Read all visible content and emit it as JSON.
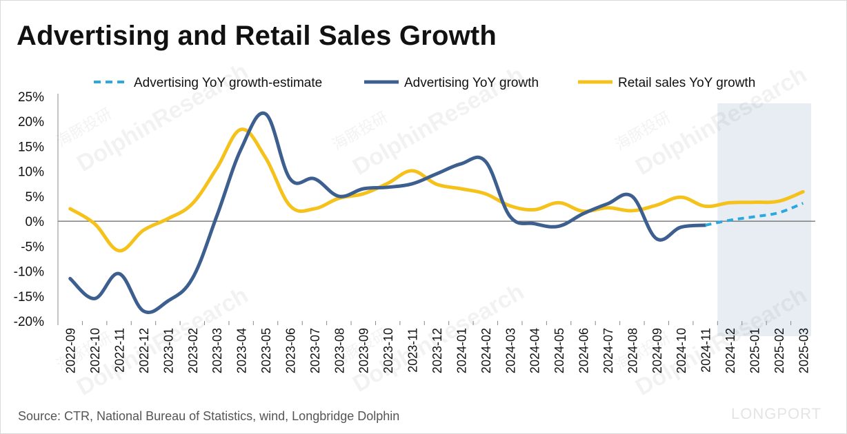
{
  "header": {
    "title": "Advertising and Retail Sales Growth"
  },
  "footer": {
    "source": "Source: CTR, National Bureau of Statistics, wind, Longbridge Dolphin",
    "brand": "LONGPORT"
  },
  "watermark": {
    "text": "DolphinResearch",
    "cn": "海豚投研"
  },
  "chart_data": {
    "type": "line",
    "title": "Advertising and Retail Sales Growth",
    "xlabel": "",
    "ylabel": "",
    "ylim": [
      -20,
      25
    ],
    "yticks": [
      "25%",
      "20%",
      "15%",
      "10%",
      "5%",
      "0%",
      "-5%",
      "-10%",
      "-15%",
      "-20%"
    ],
    "ytick_values": [
      25,
      20,
      15,
      10,
      5,
      0,
      -5,
      -10,
      -15,
      -20
    ],
    "categories": [
      "2022-09",
      "2022-10",
      "2022-11",
      "2022-12",
      "2023-01",
      "2023-02",
      "2023-03",
      "2023-04",
      "2023-05",
      "2023-06",
      "2023-07",
      "2023-08",
      "2023-09",
      "2023-10",
      "2023-11",
      "2023-12",
      "2024-01",
      "2024-02",
      "2024-03",
      "2024-04",
      "2024-05",
      "2024-06",
      "2024-07",
      "2024-08",
      "2024-09",
      "2024-10",
      "2024-11",
      "2024-12",
      "2025-01",
      "2025-02",
      "2025-03"
    ],
    "forecast_start_index": 27,
    "legend_position": "top",
    "series": [
      {
        "name": "Advertising YoY growth-estimate",
        "color": "#2aa9df",
        "style": "dashed",
        "values": [
          null,
          null,
          null,
          null,
          null,
          null,
          null,
          null,
          null,
          null,
          null,
          null,
          null,
          null,
          null,
          null,
          null,
          null,
          null,
          null,
          null,
          null,
          null,
          null,
          null,
          null,
          -0.8,
          0.2,
          0.9,
          1.7,
          3.6
        ]
      },
      {
        "name": "Advertising YoY growth",
        "color": "#3d5f8f",
        "style": "solid",
        "values": [
          -11.5,
          -15.5,
          -10.5,
          -18.0,
          -16.0,
          -11.5,
          1.0,
          14.5,
          21.5,
          8.5,
          8.5,
          5.0,
          6.5,
          6.8,
          7.5,
          9.5,
          11.5,
          12.0,
          1.0,
          -0.5,
          -1.0,
          1.5,
          3.5,
          5.0,
          -3.5,
          -1.2,
          -0.8,
          null,
          null,
          null,
          null
        ]
      },
      {
        "name": "Retail sales YoY growth",
        "color": "#f5c21b",
        "style": "solid",
        "values": [
          2.5,
          -0.5,
          -5.9,
          -1.8,
          0.5,
          3.5,
          10.6,
          18.4,
          12.7,
          3.1,
          2.5,
          4.6,
          5.5,
          7.6,
          10.1,
          7.4,
          6.5,
          5.5,
          3.1,
          2.3,
          3.7,
          2.0,
          2.7,
          2.1,
          3.2,
          4.8,
          3.0,
          3.7,
          3.8,
          4.0,
          5.9
        ]
      }
    ]
  }
}
